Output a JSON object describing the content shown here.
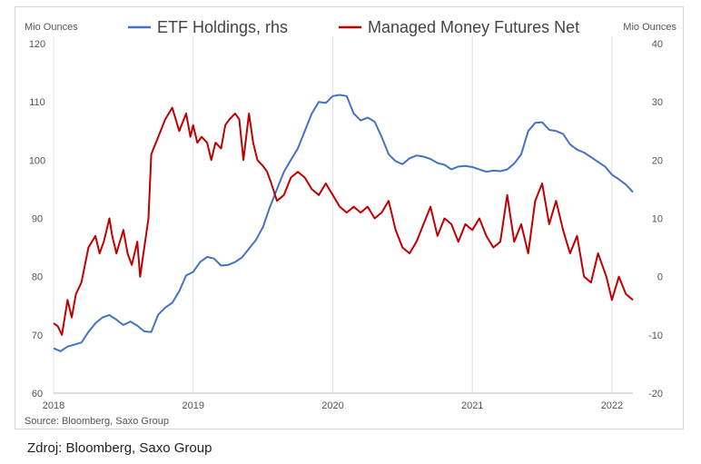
{
  "caption": "Zdroj: Bloomberg, Saxo Group",
  "chart_data": {
    "type": "line",
    "left_axis": {
      "label": "Mio Ounces",
      "range": [
        60,
        120
      ],
      "ticks": [
        "60",
        "70",
        "80",
        "90",
        "100",
        "110",
        "120"
      ]
    },
    "right_axis": {
      "label": "Mio Ounces",
      "range": [
        -20,
        40
      ],
      "ticks": [
        "-20",
        "-10",
        "0",
        "10",
        "20",
        "30",
        "40"
      ]
    },
    "x_axis": {
      "range": [
        2018.0,
        2022.15
      ],
      "ticks": [
        "2018",
        "2019",
        "2020",
        "2021",
        "2022"
      ]
    },
    "grid": "vertical",
    "legend_position": "top",
    "source": "Source: Bloomberg, Saxo Group",
    "series": [
      {
        "name": "ETF Holdings, rhs",
        "color": "#4472c4",
        "axis": "right",
        "x": [
          2018.0,
          2018.05,
          2018.1,
          2018.2,
          2018.25,
          2018.3,
          2018.35,
          2018.4,
          2018.45,
          2018.5,
          2018.55,
          2018.6,
          2018.65,
          2018.7,
          2018.75,
          2018.8,
          2018.85,
          2018.9,
          2018.95,
          2019.0,
          2019.05,
          2019.1,
          2019.15,
          2019.2,
          2019.25,
          2019.3,
          2019.35,
          2019.4,
          2019.45,
          2019.5,
          2019.55,
          2019.6,
          2019.65,
          2019.7,
          2019.75,
          2019.8,
          2019.85,
          2019.9,
          2019.95,
          2020.0,
          2020.05,
          2020.1,
          2020.15,
          2020.2,
          2020.25,
          2020.3,
          2020.35,
          2020.4,
          2020.45,
          2020.5,
          2020.55,
          2020.6,
          2020.65,
          2020.7,
          2020.75,
          2020.8,
          2020.85,
          2020.9,
          2020.95,
          2021.0,
          2021.05,
          2021.1,
          2021.15,
          2021.2,
          2021.25,
          2021.3,
          2021.35,
          2021.4,
          2021.45,
          2021.5,
          2021.55,
          2021.6,
          2021.65,
          2021.7,
          2021.75,
          2021.8,
          2021.85,
          2021.9,
          2021.95,
          2022.0,
          2022.05,
          2022.1,
          2022.15
        ],
        "y": [
          -12.3,
          -12.8,
          -12.0,
          -11.3,
          -9.5,
          -8.0,
          -7.0,
          -6.6,
          -7.4,
          -8.3,
          -7.7,
          -8.4,
          -9.4,
          -9.5,
          -6.5,
          -5.3,
          -4.5,
          -2.5,
          0.2,
          0.8,
          2.5,
          3.4,
          3.1,
          1.9,
          2.0,
          2.5,
          3.3,
          4.8,
          6.3,
          8.5,
          12.0,
          15.0,
          18.0,
          20.0,
          22.0,
          25.0,
          28.0,
          30.0,
          29.8,
          31.0,
          31.2,
          31.0,
          28.0,
          26.8,
          27.3,
          26.6,
          24.0,
          21.0,
          19.8,
          19.3,
          20.3,
          20.8,
          20.6,
          20.2,
          19.5,
          19.2,
          18.4,
          18.9,
          19.0,
          18.8,
          18.4,
          18.0,
          18.2,
          18.1,
          18.4,
          19.4,
          21.0,
          25.0,
          26.4,
          26.5,
          25.2,
          25.0,
          24.5,
          22.7,
          21.8,
          21.3,
          20.5,
          19.7,
          18.9,
          17.5,
          16.7,
          15.8,
          14.5
        ]
      },
      {
        "name": "Managed Money Futures Net",
        "color": "#c00000",
        "axis": "left",
        "x": [
          2018.0,
          2018.03,
          2018.06,
          2018.1,
          2018.13,
          2018.16,
          2018.2,
          2018.25,
          2018.3,
          2018.33,
          2018.36,
          2018.4,
          2018.42,
          2018.45,
          2018.5,
          2018.53,
          2018.56,
          2018.6,
          2018.62,
          2018.65,
          2018.68,
          2018.7,
          2018.75,
          2018.8,
          2018.85,
          2018.9,
          2018.95,
          2018.98,
          2019.0,
          2019.03,
          2019.06,
          2019.1,
          2019.13,
          2019.16,
          2019.2,
          2019.23,
          2019.26,
          2019.3,
          2019.33,
          2019.36,
          2019.4,
          2019.43,
          2019.46,
          2019.5,
          2019.53,
          2019.56,
          2019.6,
          2019.65,
          2019.7,
          2019.75,
          2019.8,
          2019.85,
          2019.9,
          2019.95,
          2020.0,
          2020.05,
          2020.1,
          2020.15,
          2020.2,
          2020.25,
          2020.3,
          2020.35,
          2020.4,
          2020.45,
          2020.5,
          2020.55,
          2020.6,
          2020.65,
          2020.7,
          2020.75,
          2020.8,
          2020.85,
          2020.9,
          2020.95,
          2021.0,
          2021.05,
          2021.1,
          2021.15,
          2021.2,
          2021.25,
          2021.3,
          2021.35,
          2021.4,
          2021.45,
          2021.5,
          2021.55,
          2021.6,
          2021.65,
          2021.7,
          2021.75,
          2021.8,
          2021.85,
          2021.9,
          2021.93,
          2021.96,
          2022.0,
          2022.05,
          2022.1,
          2022.15
        ],
        "y": [
          72,
          71.5,
          70,
          76,
          73,
          77,
          79,
          85,
          87,
          84,
          86,
          90,
          87,
          84,
          88,
          84,
          82,
          86,
          80,
          85,
          90,
          101,
          104,
          107,
          109,
          105,
          108,
          104,
          106,
          103,
          104,
          103,
          100,
          103,
          102,
          106,
          107,
          108,
          107,
          100,
          108,
          103,
          100,
          99,
          98,
          96,
          93,
          94,
          97,
          98,
          97,
          95,
          94,
          96,
          94,
          92,
          91,
          92,
          91,
          92,
          90,
          91,
          93,
          88,
          85,
          84,
          86,
          89,
          92,
          87,
          90,
          89,
          86,
          89,
          88,
          90,
          87,
          85,
          86,
          94,
          86,
          89,
          84,
          93,
          96,
          89,
          93,
          88,
          84,
          87,
          80,
          79,
          84,
          82,
          80,
          76,
          80,
          77,
          76
        ]
      }
    ]
  }
}
